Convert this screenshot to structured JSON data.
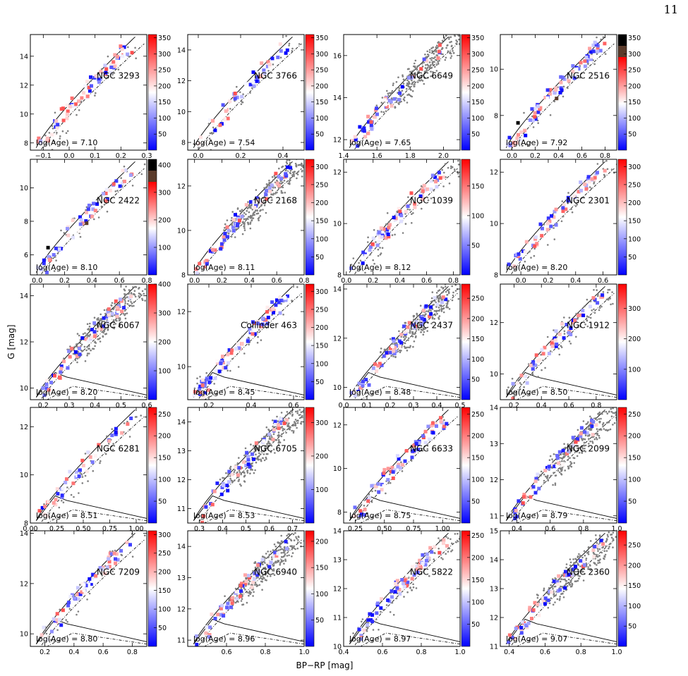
{
  "page_number": "11",
  "figure": {
    "ylabel": "G [mag]",
    "xlabel": "BP−RP [mag]"
  },
  "colors": {
    "member_low": "#0000ff",
    "member_mid": "#ffffff",
    "member_high": "#ff0000",
    "field_stars": "#808080",
    "outlier_dark": "#000000",
    "outlier_brown": "#5a3a2a",
    "isochrone": "#000000"
  },
  "chart_data": [
    {
      "type": "scatter",
      "title": "NGC 3293",
      "age_label": "log(Age) = 7.10",
      "xlim": [
        -0.15,
        0.3
      ],
      "ylim": [
        15.5,
        7.5
      ],
      "xticks": [
        "−0.1",
        "0.0",
        "0.1",
        "0.2",
        "0.3"
      ],
      "xtick_values": [
        -0.1,
        0,
        0.1,
        0.2,
        0.3
      ],
      "yticks": [
        "8",
        "10",
        "12",
        "14"
      ],
      "ytick_values": [
        8,
        10,
        12,
        14
      ],
      "cbar_ticks": [
        "50",
        "100",
        "150",
        "200",
        "250",
        "300",
        "350"
      ],
      "cbar_values": [
        50,
        100,
        150,
        200,
        250,
        300,
        350
      ],
      "cbar_range": [
        0,
        360
      ],
      "cbar_extra": [],
      "field_density": "low"
    },
    {
      "type": "scatter",
      "title": "NGC 3766",
      "age_label": "log(Age) = 7.54",
      "xlim": [
        -0.05,
        0.5
      ],
      "ylim": [
        15.0,
        7.5
      ],
      "xticks": [
        "0.0",
        "0.2",
        "0.4"
      ],
      "xtick_values": [
        0,
        0.2,
        0.4
      ],
      "yticks": [
        "8",
        "10",
        "12",
        "14"
      ],
      "ytick_values": [
        8,
        10,
        12,
        14
      ],
      "cbar_ticks": [
        "50",
        "100",
        "150",
        "200",
        "250",
        "300",
        "350"
      ],
      "cbar_values": [
        50,
        100,
        150,
        200,
        250,
        300,
        350
      ],
      "cbar_range": [
        0,
        360
      ],
      "cbar_extra": [],
      "field_density": "low"
    },
    {
      "type": "scatter",
      "title": "NGC 6649",
      "age_label": "log(Age) = 7.65",
      "xlim": [
        1.4,
        2.1
      ],
      "ylim": [
        17.0,
        11.5
      ],
      "xticks": [
        "1.4",
        "1.6",
        "1.8",
        "2.0"
      ],
      "xtick_values": [
        1.4,
        1.6,
        1.8,
        2.0
      ],
      "yticks": [
        "12",
        "14",
        "16"
      ],
      "ytick_values": [
        12,
        14,
        16
      ],
      "cbar_ticks": [
        "50",
        "100",
        "150",
        "200",
        "250",
        "300",
        "350"
      ],
      "cbar_values": [
        50,
        100,
        150,
        200,
        250,
        300,
        350
      ],
      "cbar_range": [
        0,
        360
      ],
      "cbar_extra": [],
      "field_density": "high"
    },
    {
      "type": "scatter",
      "title": "NGC 2516",
      "age_label": "log(Age) = 7.92",
      "xlim": [
        -0.1,
        0.9
      ],
      "ylim": [
        11.5,
        6.5
      ],
      "xticks": [
        "0.0",
        "0.2",
        "0.4",
        "0.6",
        "0.8"
      ],
      "xtick_values": [
        0,
        0.2,
        0.4,
        0.6,
        0.8
      ],
      "yticks": [
        "8",
        "10"
      ],
      "ytick_values": [
        8,
        10
      ],
      "cbar_ticks": [
        "50",
        "100",
        "150",
        "200",
        "250",
        "300",
        "350"
      ],
      "cbar_values": [
        50,
        100,
        150,
        200,
        250,
        300,
        350
      ],
      "cbar_range": [
        0,
        360
      ],
      "cbar_extra": [
        "brown",
        "black"
      ],
      "field_density": "low"
    },
    {
      "type": "scatter",
      "title": "NGC 2422",
      "age_label": "log(Age) = 8.10",
      "xlim": [
        -0.05,
        0.8
      ],
      "ylim": [
        11.7,
        4.8
      ],
      "xticks": [
        "0.0",
        "0.2",
        "0.4",
        "0.6",
        "0.8"
      ],
      "xtick_values": [
        0,
        0.2,
        0.4,
        0.6,
        0.8
      ],
      "yticks": [
        "6",
        "8",
        "10"
      ],
      "ytick_values": [
        6,
        8,
        10
      ],
      "cbar_ticks": [
        "100",
        "200",
        "300",
        "400"
      ],
      "cbar_values": [
        100,
        200,
        300,
        400
      ],
      "cbar_range": [
        0,
        420
      ],
      "cbar_extra": [
        "brown",
        "black"
      ],
      "field_density": "low"
    },
    {
      "type": "scatter",
      "title": "NGC 2168",
      "age_label": "log(Age) = 8.11",
      "xlim": [
        -0.05,
        0.8
      ],
      "ylim": [
        13.2,
        8.0
      ],
      "xticks": [
        "0.0",
        "0.2",
        "0.4",
        "0.6",
        "0.8"
      ],
      "xtick_values": [
        0,
        0.2,
        0.4,
        0.6,
        0.8
      ],
      "yticks": [
        "8",
        "10",
        "12"
      ],
      "ytick_values": [
        8,
        10,
        12
      ],
      "cbar_ticks": [
        "50",
        "100",
        "150",
        "200",
        "250",
        "300"
      ],
      "cbar_values": [
        50,
        100,
        150,
        200,
        250,
        300
      ],
      "cbar_range": [
        0,
        320
      ],
      "cbar_extra": [],
      "field_density": "high"
    },
    {
      "type": "scatter",
      "title": "NGC 1039",
      "age_label": "log(Age) = 8.12",
      "xlim": [
        -0.02,
        0.85
      ],
      "ylim": [
        12.5,
        8.0
      ],
      "xticks": [
        "0.0",
        "0.2",
        "0.4",
        "0.6",
        "0.8"
      ],
      "xtick_values": [
        0,
        0.2,
        0.4,
        0.6,
        0.8
      ],
      "yticks": [
        "8",
        "10",
        "12"
      ],
      "ytick_values": [
        8,
        10,
        12
      ],
      "cbar_ticks": [
        "50",
        "100",
        "150"
      ],
      "cbar_values": [
        50,
        100,
        150
      ],
      "cbar_range": [
        0,
        195
      ],
      "cbar_extra": [],
      "field_density": "medium"
    },
    {
      "type": "scatter",
      "title": "NGC 2301",
      "age_label": "log(Age) = 8.20",
      "xlim": [
        -0.15,
        0.7
      ],
      "ylim": [
        12.5,
        8.0
      ],
      "xticks": [
        "0.0",
        "0.2",
        "0.4",
        "0.6"
      ],
      "xtick_values": [
        0,
        0.2,
        0.4,
        0.6
      ],
      "yticks": [
        "8",
        "10",
        "12"
      ],
      "ytick_values": [
        8,
        10,
        12
      ],
      "cbar_ticks": [
        "50",
        "100",
        "150",
        "200",
        "250",
        "300"
      ],
      "cbar_values": [
        50,
        100,
        150,
        200,
        250,
        300
      ],
      "cbar_range": [
        0,
        320
      ],
      "cbar_extra": [],
      "field_density": "low"
    },
    {
      "type": "scatter",
      "title": "NGC 6067",
      "age_label": "log(Age) = 8.20",
      "xlim": [
        0.15,
        0.6
      ],
      "ylim": [
        14.5,
        9.5
      ],
      "xticks": [
        "0.2",
        "0.3",
        "0.4",
        "0.5",
        "0.6"
      ],
      "xtick_values": [
        0.2,
        0.3,
        0.4,
        0.5,
        0.6
      ],
      "yticks": [
        "10",
        "12",
        "14"
      ],
      "ytick_values": [
        10,
        12,
        14
      ],
      "cbar_ticks": [
        "100",
        "200",
        "300",
        "400"
      ],
      "cbar_values": [
        100,
        200,
        300,
        400
      ],
      "cbar_range": [
        0,
        400
      ],
      "cbar_extra": [],
      "field_density": "high"
    },
    {
      "type": "scatter",
      "title": "Collinder 463",
      "age_label": "log(Age) = 8.45",
      "xlim": [
        0.1,
        0.65
      ],
      "ylim": [
        13.0,
        8.8
      ],
      "xticks": [
        "0.2",
        "0.4",
        "0.6"
      ],
      "xtick_values": [
        0.2,
        0.4,
        0.6
      ],
      "yticks": [
        "10",
        "12"
      ],
      "ytick_values": [
        10,
        12
      ],
      "cbar_ticks": [
        "50",
        "100",
        "150",
        "200",
        "250",
        "300"
      ],
      "cbar_values": [
        50,
        100,
        150,
        200,
        250,
        300
      ],
      "cbar_range": [
        0,
        320
      ],
      "cbar_extra": [],
      "field_density": "low"
    },
    {
      "type": "scatter",
      "title": "NGC 2437",
      "age_label": "log(Age) = 8.48",
      "xlim": [
        0.0,
        0.5
      ],
      "ylim": [
        14.2,
        9.5
      ],
      "xticks": [
        "0.0",
        "0.1",
        "0.2",
        "0.3",
        "0.4",
        "0.5"
      ],
      "xtick_values": [
        0,
        0.1,
        0.2,
        0.3,
        0.4,
        0.5
      ],
      "yticks": [
        "10",
        "12",
        "14"
      ],
      "ytick_values": [
        10,
        12,
        14
      ],
      "cbar_ticks": [
        "50",
        "100",
        "150",
        "200",
        "250"
      ],
      "cbar_values": [
        50,
        100,
        150,
        200,
        250
      ],
      "cbar_range": [
        0,
        285
      ],
      "cbar_extra": [],
      "field_density": "high"
    },
    {
      "type": "scatter",
      "title": "NGC 1912",
      "age_label": "log(Age) = 8.50",
      "xlim": [
        0.1,
        0.95
      ],
      "ylim": [
        13.5,
        9.0
      ],
      "xticks": [
        "0.2",
        "0.4",
        "0.6",
        "0.8"
      ],
      "xtick_values": [
        0.2,
        0.4,
        0.6,
        0.8
      ],
      "yticks": [
        "10",
        "12"
      ],
      "ytick_values": [
        10,
        12
      ],
      "cbar_ticks": [
        "100",
        "200",
        "300"
      ],
      "cbar_values": [
        100,
        200,
        300
      ],
      "cbar_range": [
        0,
        380
      ],
      "cbar_extra": [],
      "field_density": "medium"
    },
    {
      "type": "scatter",
      "title": "NGC 6281",
      "age_label": "log(Age) = 8.51",
      "xlim": [
        0.0,
        1.1
      ],
      "ylim": [
        12.8,
        8.0
      ],
      "xticks": [
        "0.00",
        "0.25",
        "0.50",
        "0.75",
        "1.00"
      ],
      "xtick_values": [
        0,
        0.25,
        0.5,
        0.75,
        1.0
      ],
      "yticks": [
        "8",
        "10",
        "12"
      ],
      "ytick_values": [
        8,
        10,
        12
      ],
      "cbar_ticks": [
        "50",
        "100",
        "150",
        "200",
        "250"
      ],
      "cbar_values": [
        50,
        100,
        150,
        200,
        250
      ],
      "cbar_range": [
        0,
        265
      ],
      "cbar_extra": [],
      "field_density": "low"
    },
    {
      "type": "scatter",
      "title": "NGC 6705",
      "age_label": "log(Age) = 8.53",
      "xlim": [
        0.25,
        0.75
      ],
      "ylim": [
        14.5,
        10.5
      ],
      "xticks": [
        "0.3",
        "0.4",
        "0.5",
        "0.6",
        "0.7"
      ],
      "xtick_values": [
        0.3,
        0.4,
        0.5,
        0.6,
        0.7
      ],
      "yticks": [
        "11",
        "12",
        "13",
        "14"
      ],
      "ytick_values": [
        11,
        12,
        13,
        14
      ],
      "cbar_ticks": [
        "100",
        "200",
        "300"
      ],
      "cbar_values": [
        100,
        200,
        300
      ],
      "cbar_range": [
        0,
        345
      ],
      "cbar_extra": [],
      "field_density": "high"
    },
    {
      "type": "scatter",
      "title": "NGC 6633",
      "age_label": "log(Age) = 8.75",
      "xlim": [
        0.15,
        1.15
      ],
      "ylim": [
        12.8,
        7.5
      ],
      "xticks": [
        "0.25",
        "0.50",
        "0.75",
        "1.00"
      ],
      "xtick_values": [
        0.25,
        0.5,
        0.75,
        1.0
      ],
      "yticks": [
        "8",
        "10",
        "12"
      ],
      "ytick_values": [
        8,
        10,
        12
      ],
      "cbar_ticks": [
        "50",
        "100",
        "150",
        "200",
        "250"
      ],
      "cbar_values": [
        50,
        100,
        150,
        200,
        250
      ],
      "cbar_range": [
        0,
        265
      ],
      "cbar_extra": [],
      "field_density": "low"
    },
    {
      "type": "scatter",
      "title": "NGC 2099",
      "age_label": "log(Age) = 8.79",
      "xlim": [
        0.3,
        1.0
      ],
      "ylim": [
        14.0,
        10.8
      ],
      "xticks": [
        "0.4",
        "0.6",
        "0.8",
        "1.0"
      ],
      "xtick_values": [
        0.4,
        0.6,
        0.8,
        1.0
      ],
      "yticks": [
        "11",
        "12",
        "13",
        "14"
      ],
      "ytick_values": [
        11,
        12,
        13,
        14
      ],
      "cbar_ticks": [
        "50",
        "100",
        "150",
        "200",
        "250"
      ],
      "cbar_values": [
        50,
        100,
        150,
        200,
        250
      ],
      "cbar_range": [
        0,
        265
      ],
      "cbar_extra": [],
      "field_density": "high"
    },
    {
      "type": "scatter",
      "title": "NGC 7209",
      "age_label": "log(Age) = 8.80",
      "xlim": [
        0.1,
        0.9
      ],
      "ylim": [
        14.1,
        9.5
      ],
      "xticks": [
        "0.2",
        "0.4",
        "0.6",
        "0.8"
      ],
      "xtick_values": [
        0.2,
        0.4,
        0.6,
        0.8
      ],
      "yticks": [
        "10",
        "12",
        "14"
      ],
      "ytick_values": [
        10,
        12,
        14
      ],
      "cbar_ticks": [
        "50",
        "100",
        "150",
        "200",
        "250",
        "300"
      ],
      "cbar_values": [
        50,
        100,
        150,
        200,
        250,
        300
      ],
      "cbar_range": [
        0,
        310
      ],
      "cbar_extra": [],
      "field_density": "low"
    },
    {
      "type": "scatter",
      "title": "NGC 6940",
      "age_label": "log(Age) = 8.96",
      "xlim": [
        0.4,
        1.0
      ],
      "ylim": [
        14.5,
        10.8
      ],
      "xticks": [
        "0.6",
        "0.8",
        "1.0"
      ],
      "xtick_values": [
        0.6,
        0.8,
        1.0
      ],
      "yticks": [
        "11",
        "12",
        "13",
        "14"
      ],
      "ytick_values": [
        11,
        12,
        13,
        14
      ],
      "cbar_ticks": [
        "50",
        "100",
        "150",
        "200"
      ],
      "cbar_values": [
        50,
        100,
        150,
        200
      ],
      "cbar_range": [
        0,
        220
      ],
      "cbar_extra": [],
      "field_density": "high"
    },
    {
      "type": "scatter",
      "title": "NGC 5822",
      "age_label": "log(Age) = 8.97",
      "xlim": [
        0.4,
        1.0
      ],
      "ylim": [
        14.0,
        10.0
      ],
      "xticks": [
        "0.4",
        "0.6",
        "0.8",
        "1.0"
      ],
      "xtick_values": [
        0.4,
        0.6,
        0.8,
        1.0
      ],
      "yticks": [
        "10",
        "11",
        "12",
        "13",
        "14"
      ],
      "ytick_values": [
        10,
        11,
        12,
        13,
        14
      ],
      "cbar_ticks": [
        "50",
        "100",
        "150",
        "200",
        "250"
      ],
      "cbar_values": [
        50,
        100,
        150,
        200,
        250
      ],
      "cbar_range": [
        0,
        260
      ],
      "cbar_extra": [],
      "field_density": "medium"
    },
    {
      "type": "scatter",
      "title": "NGC 2360",
      "age_label": "log(Age) = 9.07",
      "xlim": [
        0.35,
        1.0
      ],
      "ylim": [
        15.0,
        11.0
      ],
      "xticks": [
        "0.4",
        "0.6",
        "0.8",
        "1.0"
      ],
      "xtick_values": [
        0.4,
        0.6,
        0.8,
        1.0
      ],
      "yticks": [
        "11",
        "12",
        "13",
        "14",
        "15"
      ],
      "ytick_values": [
        11,
        12,
        13,
        14,
        15
      ],
      "cbar_ticks": [
        "50",
        "100",
        "150",
        "200",
        "250"
      ],
      "cbar_values": [
        50,
        100,
        150,
        200,
        250
      ],
      "cbar_range": [
        0,
        285
      ],
      "cbar_extra": [],
      "field_density": "high"
    }
  ]
}
